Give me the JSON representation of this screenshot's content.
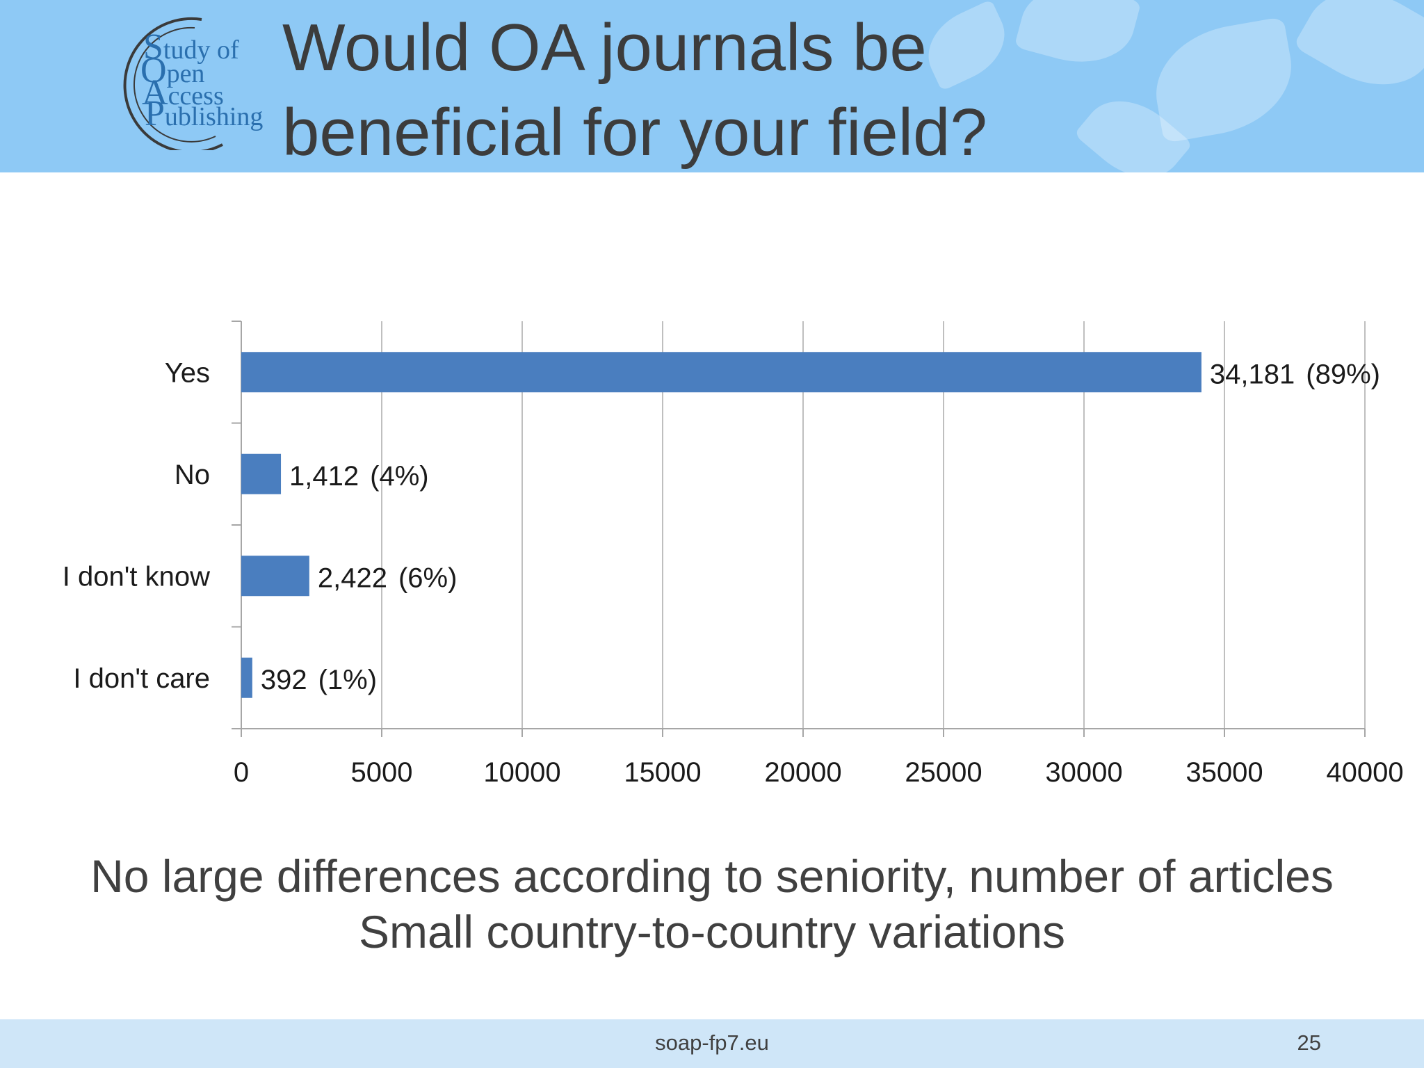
{
  "slide": {
    "title_lines": [
      "Would OA journals be",
      "beneficial for your field?"
    ],
    "caption_lines": [
      "No large differences according to seniority, number of articles",
      "Small country-to-country variations"
    ],
    "footer_url": "soap-fp7.eu",
    "page_number": "25"
  },
  "logo": {
    "lines": [
      {
        "cap": "S",
        "rest": "tudy of"
      },
      {
        "cap": "O",
        "rest": "pen"
      },
      {
        "cap": "A",
        "rest": "ccess"
      },
      {
        "cap": "P",
        "rest": "ublishing"
      }
    ]
  },
  "colors": {
    "header_bg": "#8ec9f5",
    "bar": "#4a7ebf",
    "footer_bg": "#cfe6f8",
    "logo": "#2a6fae"
  },
  "chart_data": {
    "type": "bar",
    "orientation": "horizontal",
    "categories": [
      "Yes",
      "No",
      "I don't know",
      "I don't care"
    ],
    "values": [
      34181,
      1412,
      2422,
      392
    ],
    "data_labels": [
      "34,181",
      "1,412",
      "2,422",
      "392"
    ],
    "percent_labels": [
      "(89%)",
      "(4%)",
      "(6%)",
      "(1%)"
    ],
    "xlim": [
      0,
      40000
    ],
    "x_ticks": [
      0,
      5000,
      10000,
      15000,
      20000,
      25000,
      30000,
      35000,
      40000
    ],
    "x_tick_labels": [
      "0",
      "5000",
      "10000",
      "15000",
      "20000",
      "25000",
      "30000",
      "35000",
      "40000"
    ],
    "grid": "vertical",
    "legend": "none",
    "title": "",
    "xlabel": "",
    "ylabel": ""
  }
}
